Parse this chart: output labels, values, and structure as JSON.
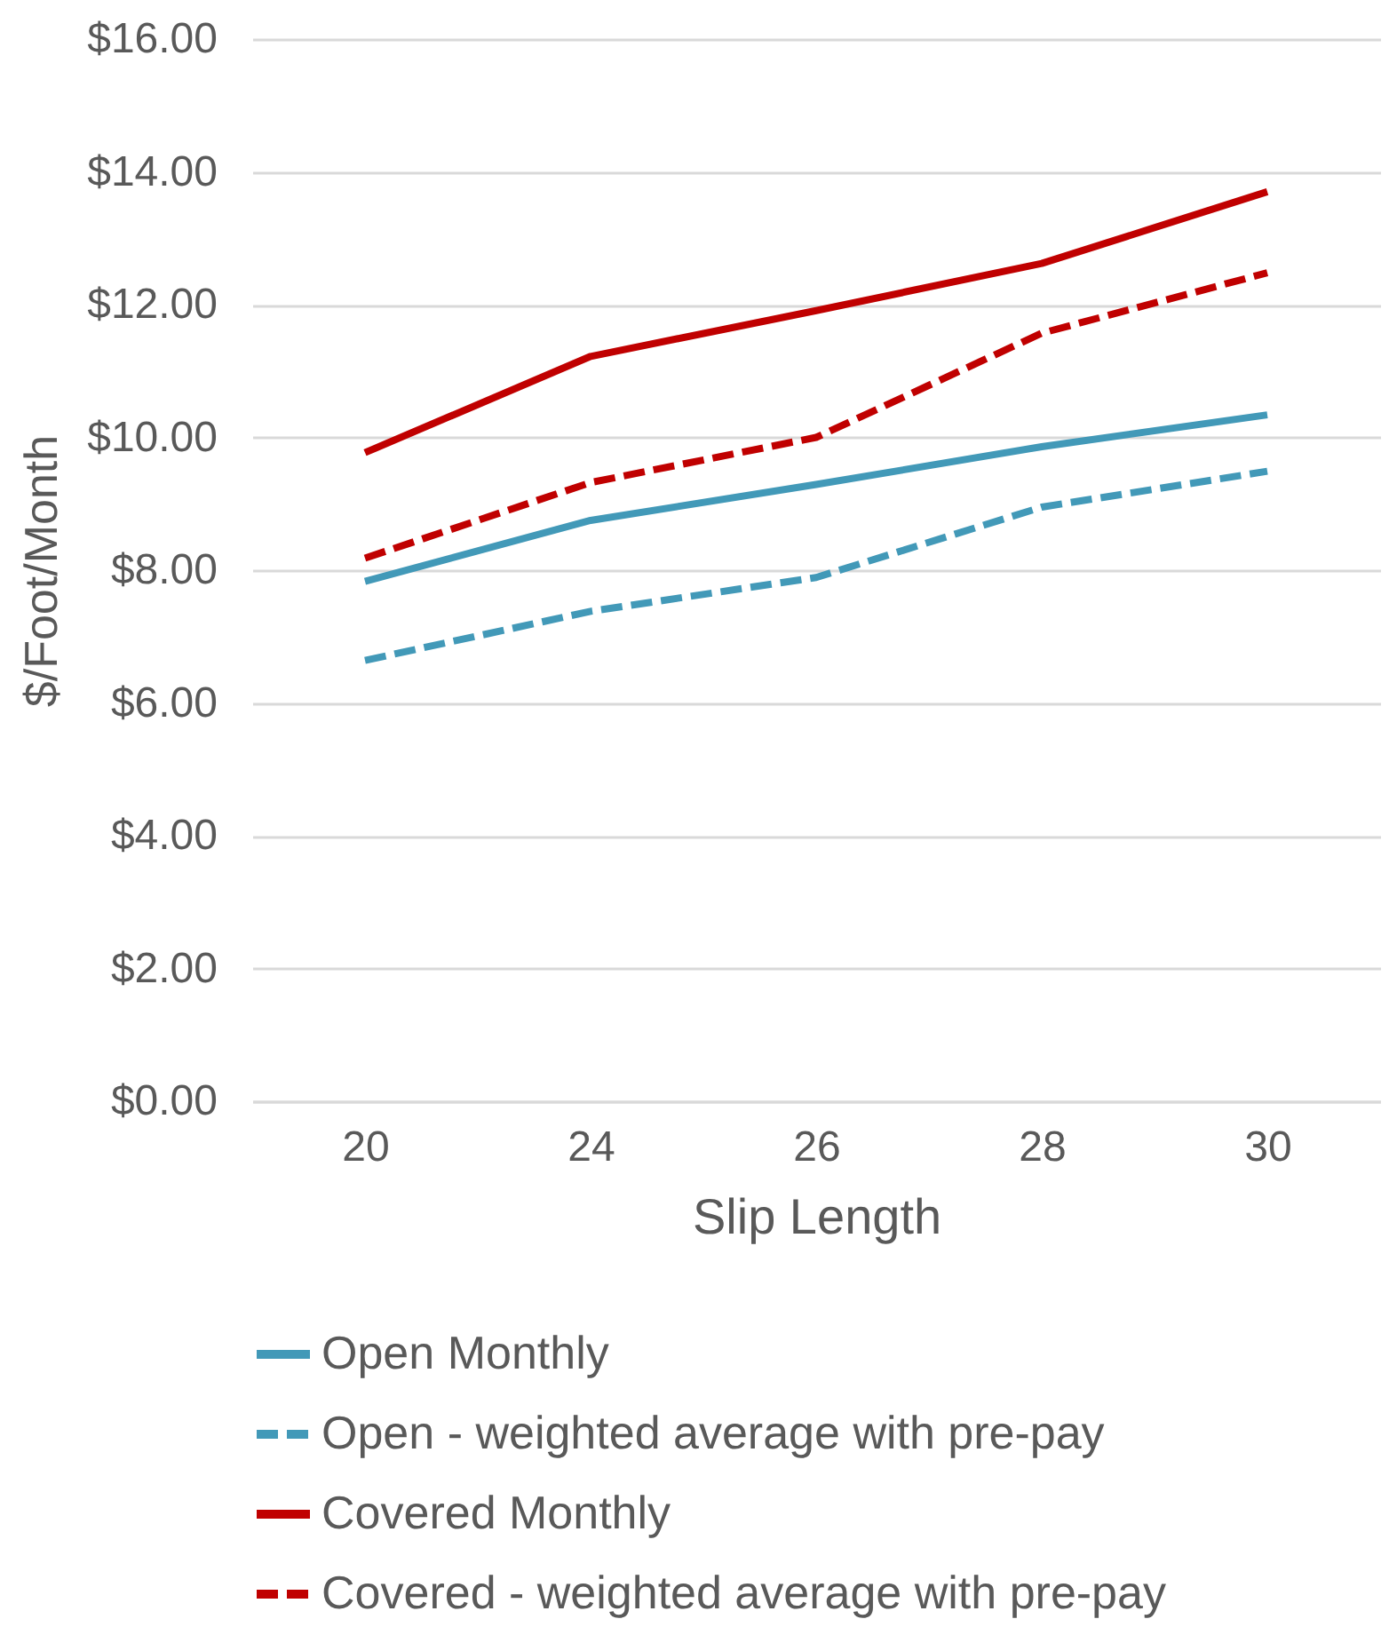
{
  "chart_data": {
    "type": "line",
    "xlabel": "Slip Length",
    "ylabel": "$/Foot/Month",
    "categories": [
      "20",
      "24",
      "26",
      "28",
      "30"
    ],
    "series": [
      {
        "name": "Open Monthly",
        "color": "#4299b8",
        "line_style": "solid",
        "values": [
          7.83,
          8.75,
          9.29,
          9.86,
          10.34
        ]
      },
      {
        "name": "Open - weighted average with pre-pay",
        "color": "#4299b8",
        "line_style": "dashed",
        "values": [
          6.64,
          7.38,
          7.89,
          8.95,
          9.49
        ]
      },
      {
        "name": "Covered Monthly",
        "color": "#c00000",
        "line_style": "solid",
        "values": [
          9.77,
          11.22,
          11.91,
          12.62,
          13.7
        ]
      },
      {
        "name": "Covered - weighted average with pre-pay",
        "color": "#c00000",
        "line_style": "dashed",
        "values": [
          8.18,
          9.32,
          10.0,
          11.57,
          12.48
        ]
      }
    ],
    "ylim": [
      0,
      16
    ],
    "yticks": [
      {
        "value": 0,
        "label": "$0.00"
      },
      {
        "value": 2,
        "label": "$2.00"
      },
      {
        "value": 4,
        "label": "$4.00"
      },
      {
        "value": 6,
        "label": "$6.00"
      },
      {
        "value": 8,
        "label": "$8.00"
      },
      {
        "value": 10,
        "label": "$10.00"
      },
      {
        "value": 12,
        "label": "$12.00"
      },
      {
        "value": 14,
        "label": "$14.00"
      },
      {
        "value": 16,
        "label": "$16.00"
      }
    ],
    "grid": "y",
    "legend": "bottom",
    "marker": "none"
  }
}
